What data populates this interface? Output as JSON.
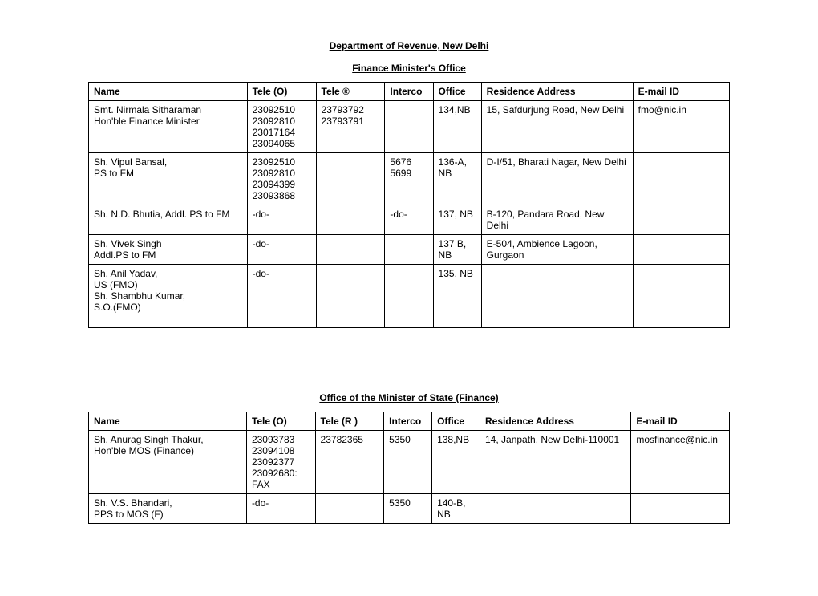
{
  "title": "Department of Revenue, New Delhi",
  "section1": {
    "heading": "Finance Minister's Office",
    "columns": [
      "Name",
      "Tele (O)",
      "Tele ®",
      "Interco",
      "Office",
      "Residence Address",
      "E-mail ID"
    ],
    "rows": [
      {
        "name": "Smt. Nirmala Sitharaman\nHon'ble Finance Minister",
        "tele_o": "23092510\n23092810\n23017164\n23094065",
        "tele_r": "23793792\n23793791",
        "interco": "",
        "office": "134,NB",
        "residence": "15, Safdurjung Road, New Delhi",
        "email": "fmo@nic.in"
      },
      {
        "name": "Sh. Vipul Bansal,\n PS to FM",
        "tele_o": "23092510\n23092810\n23094399\n23093868",
        "tele_r": "",
        "interco": "5676\n5699",
        "office": "136-A, NB",
        "residence": "D-I/51, Bharati Nagar, New Delhi",
        "email": ""
      },
      {
        "name": "Sh. N.D. Bhutia, Addl. PS to FM",
        "tele_o": "-do-",
        "tele_r": "",
        "interco": "-do-",
        "office": "137, NB",
        "residence": "B-120, Pandara Road, New Delhi",
        "email": ""
      },
      {
        "name": "Sh. Vivek Singh\nAddl.PS to FM",
        "tele_o": "-do-",
        "tele_r": "",
        "interco": "",
        "office": "137 B, NB",
        "residence": "E-504, Ambience Lagoon, Gurgaon",
        "email": ""
      },
      {
        "name": "Sh. Anil Yadav,\nUS (FMO)\nSh. Shambhu Kumar,\nS.O.(FMO)\n\n",
        "tele_o": "-do-",
        "tele_r": "",
        "interco": "",
        "office": "135, NB",
        "residence": "",
        "email": ""
      }
    ]
  },
  "section2": {
    "heading": "Office of the Minister of State (Finance)",
    "columns": [
      "Name",
      "Tele (O)",
      "Tele (R  )",
      "Interco",
      "Office",
      "Residence Address",
      "E-mail ID"
    ],
    "rows": [
      {
        "name": "Sh. Anurag Singh Thakur,\nHon'ble MOS (Finance)",
        "tele_o": "23093783\n23094108\n23092377\n23092680: FAX",
        "tele_r": "23782365",
        "interco": "5350",
        "office": "138,NB",
        "residence": "14, Janpath, New Delhi-110001",
        "email": "mosfinance@nic.in"
      },
      {
        "name": "Sh. V.S. Bhandari,\nPPS to MOS (F)\n",
        "tele_o": "-do-",
        "tele_r": "",
        "interco": "5350",
        "office": "140-B, NB",
        "residence": "",
        "email": ""
      }
    ]
  }
}
